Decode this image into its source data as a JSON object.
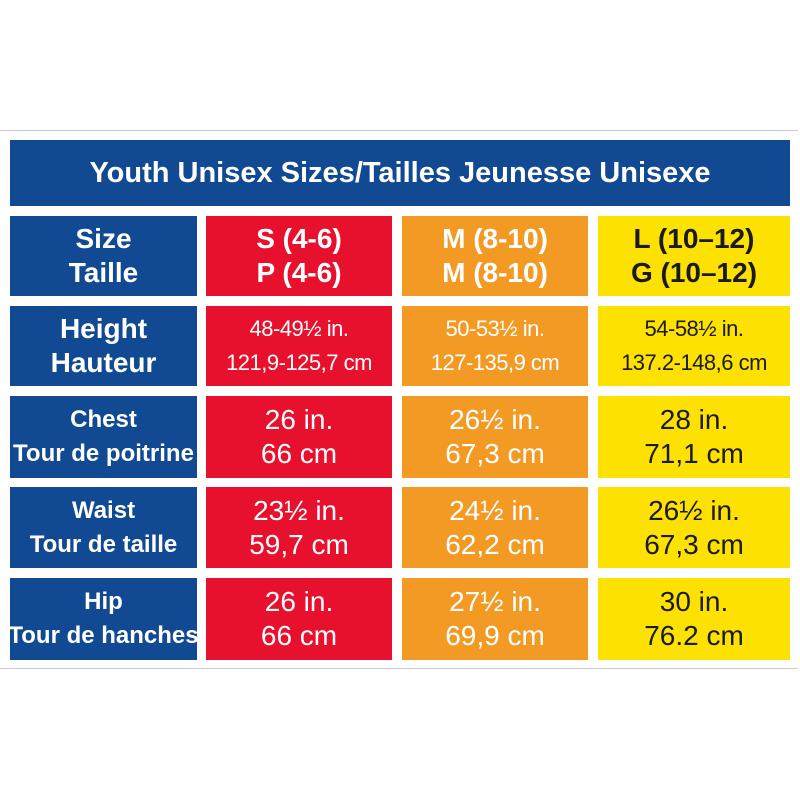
{
  "title": "Youth Unisex Sizes/Tailles Jeunesse Unisexe",
  "table": {
    "header": [
      [
        "Size",
        "Taille"
      ],
      [
        "S (4-6)",
        "P (4-6)"
      ],
      [
        "M (8-10)",
        "M (8-10)"
      ],
      [
        "L (10–12)",
        "G (10–12)"
      ]
    ],
    "rows": [
      [
        [
          "Height",
          "Hauteur"
        ],
        [
          "48-49½ in.",
          "121,9-125,7 cm"
        ],
        [
          "50-53½ in.",
          "127-135,9 cm"
        ],
        [
          "54-58½ in.",
          "137.2-148,6 cm"
        ]
      ],
      [
        [
          "Chest",
          "Tour de poitrine"
        ],
        [
          "26 in.",
          "66 cm"
        ],
        [
          "26½ in.",
          "67,3 cm"
        ],
        [
          "28 in.",
          "71,1 cm"
        ]
      ],
      [
        [
          "Waist",
          "Tour de taille"
        ],
        [
          "23½ in.",
          "59,7 cm"
        ],
        [
          "24½ in.",
          "62,2 cm"
        ],
        [
          "26½ in.",
          "67,3 cm"
        ]
      ],
      [
        [
          "Hip",
          "Tour de hanches"
        ],
        [
          "26 in.",
          "66 cm"
        ],
        [
          "27½ in.",
          "69,9 cm"
        ],
        [
          "30 in.",
          "76.2 cm"
        ]
      ]
    ]
  }
}
